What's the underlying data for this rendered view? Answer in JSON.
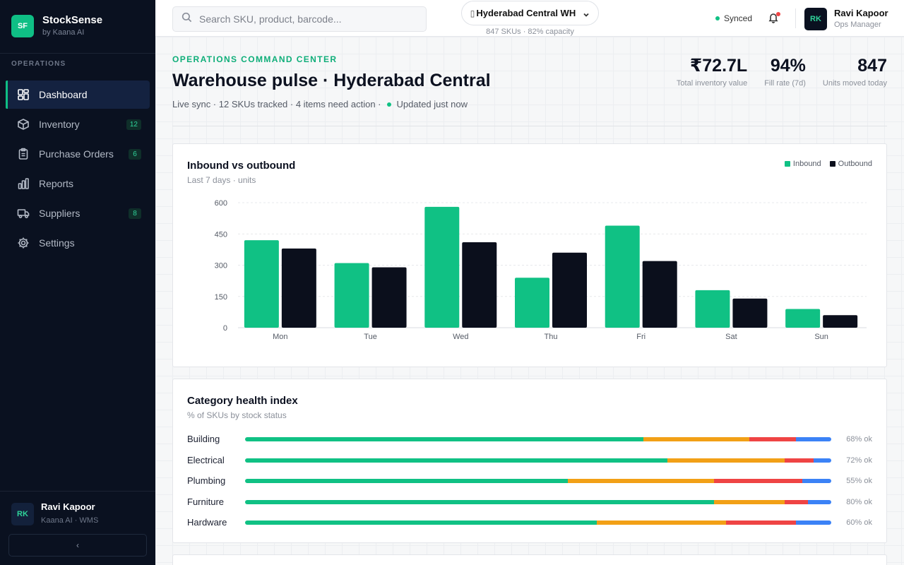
{
  "colors": {
    "accent": "#0fbf85",
    "ok": "#10c184",
    "low": "#f2a016",
    "critical": "#ef4444",
    "overstock": "#3b82f6",
    "outbound": "#0b0f1c"
  },
  "brand": {
    "logo": "SF",
    "name": "StockSense",
    "sub": "by Kaana AI"
  },
  "sidebar": {
    "section": "OPERATIONS",
    "items": [
      {
        "label": "Dashboard",
        "icon": "dashboard-icon",
        "badge": ""
      },
      {
        "label": "Inventory",
        "icon": "box-icon",
        "badge": "12"
      },
      {
        "label": "Purchase Orders",
        "icon": "clipboard-icon",
        "badge": "6"
      },
      {
        "label": "Reports",
        "icon": "bar-chart-icon",
        "badge": ""
      },
      {
        "label": "Suppliers",
        "icon": "truck-icon",
        "badge": "8"
      },
      {
        "label": "Settings",
        "icon": "gear-icon",
        "badge": ""
      }
    ],
    "user": {
      "initials": "RK",
      "name": "Ravi Kapoor",
      "sub": "Kaana AI · WMS"
    },
    "collapse": "‹"
  },
  "topbar": {
    "search_placeholder": "Search SKU, product, barcode...",
    "warehouse": "Hyderabad Central WH",
    "warehouse_sub": "847 SKUs · 82% capacity",
    "sync": "Synced",
    "user": {
      "initials": "RK",
      "name": "Ravi Kapoor",
      "role": "Ops Manager"
    }
  },
  "header": {
    "eyebrow": "OPERATIONS COMMAND CENTER",
    "title": "Warehouse pulse · Hyderabad Central",
    "sub": "Live sync · 12 SKUs tracked · 4 items need action ·",
    "updated": "Updated just now",
    "kpis": [
      {
        "value": "₹72.7L",
        "label": "Total inventory value"
      },
      {
        "value": "94%",
        "label": "Fill rate (7d)"
      },
      {
        "value": "847",
        "label": "Units moved today"
      }
    ]
  },
  "inout_card": {
    "title": "Inbound vs outbound",
    "sub": "Last 7 days · units"
  },
  "chart_data": {
    "type": "bar",
    "categories": [
      "Mon",
      "Tue",
      "Wed",
      "Thu",
      "Fri",
      "Sat",
      "Sun"
    ],
    "series": [
      {
        "name": "Inbound",
        "values": [
          420,
          310,
          580,
          240,
          490,
          180,
          90
        ]
      },
      {
        "name": "Outbound",
        "values": [
          380,
          290,
          410,
          360,
          320,
          140,
          60
        ]
      }
    ],
    "yticks": [
      0,
      150,
      300,
      450,
      600
    ],
    "ylim": [
      0,
      600
    ],
    "grid": true,
    "legend": "top-right"
  },
  "health_card": {
    "title": "Category health index",
    "sub": "% of SKUs by stock status",
    "rows": [
      {
        "label": "Building",
        "ok": 68,
        "low": 18,
        "critical": 8,
        "overstock": 6,
        "pct": "68% ok"
      },
      {
        "label": "Electrical",
        "ok": 72,
        "low": 20,
        "critical": 5,
        "overstock": 3,
        "pct": "72% ok"
      },
      {
        "label": "Plumbing",
        "ok": 55,
        "low": 25,
        "critical": 15,
        "overstock": 5,
        "pct": "55% ok"
      },
      {
        "label": "Furniture",
        "ok": 80,
        "low": 12,
        "critical": 4,
        "overstock": 4,
        "pct": "80% ok"
      },
      {
        "label": "Hardware",
        "ok": 60,
        "low": 22,
        "critical": 12,
        "overstock": 6,
        "pct": "60% ok"
      }
    ]
  }
}
